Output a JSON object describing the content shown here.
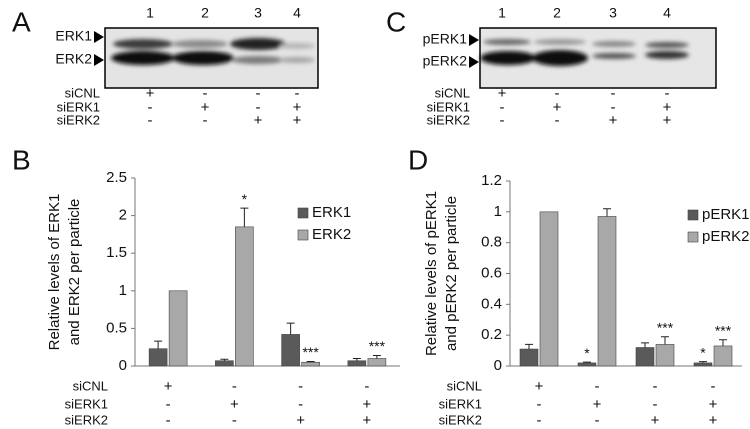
{
  "blots": [
    {
      "panel_label": "A",
      "lanes": [
        "1",
        "2",
        "3",
        "4"
      ],
      "bands": [
        "ERK1",
        "ERK2"
      ],
      "treatments": [
        {
          "name": "siCNL",
          "marks": [
            "+",
            "-",
            "-",
            "-"
          ]
        },
        {
          "name": "siERK1",
          "marks": [
            "-",
            "+",
            "-",
            "+"
          ]
        },
        {
          "name": "siERK2",
          "marks": [
            "-",
            "-",
            "+",
            "+"
          ]
        }
      ]
    },
    {
      "panel_label": "C",
      "lanes": [
        "1",
        "2",
        "3",
        "4"
      ],
      "bands": [
        "pERK1",
        "pERK2"
      ],
      "treatments": [
        {
          "name": "siCNL",
          "marks": [
            "+",
            "-",
            "-",
            "-"
          ]
        },
        {
          "name": "siERK1",
          "marks": [
            "-",
            "+",
            "-",
            "+"
          ]
        },
        {
          "name": "siERK2",
          "marks": [
            "-",
            "-",
            "+",
            "+"
          ]
        }
      ]
    }
  ],
  "chart_data": [
    {
      "type": "bar",
      "panel_label": "B",
      "ylabel": [
        "Relative levels of ERK1",
        "and ERK2 per particle"
      ],
      "categories": [
        null,
        null,
        null,
        null
      ],
      "series": [
        {
          "name": "ERK1",
          "color": "#5a5a5a",
          "values": [
            0.23,
            0.07,
            0.42,
            0.07
          ],
          "errors": [
            0.1,
            0.02,
            0.15,
            0.03
          ]
        },
        {
          "name": "ERK2",
          "color": "#a8a8a8",
          "values": [
            1.0,
            1.85,
            0.05,
            0.1
          ],
          "errors": [
            null,
            0.25,
            0.01,
            0.04
          ]
        }
      ],
      "annotations": [
        {
          "text": "*",
          "series": 1,
          "index": 1
        },
        {
          "text": "***",
          "series": 1,
          "index": 2
        },
        {
          "text": "***",
          "series": 1,
          "index": 3
        }
      ],
      "treatments": [
        {
          "name": "siCNL",
          "marks": [
            "+",
            "-",
            "-",
            "-"
          ]
        },
        {
          "name": "siERK1",
          "marks": [
            "-",
            "+",
            "-",
            "+"
          ]
        },
        {
          "name": "siERK2",
          "marks": [
            "-",
            "-",
            "+",
            "+"
          ]
        }
      ],
      "ylim": [
        0,
        2.5
      ],
      "yticks": [
        0,
        0.5,
        1,
        1.5,
        2,
        2.5
      ],
      "grid": false,
      "legend": "right"
    },
    {
      "type": "bar",
      "panel_label": "D",
      "ylabel": [
        "Relative levels of pERK1",
        "and pERK2 per particle"
      ],
      "categories": [
        null,
        null,
        null,
        null
      ],
      "series": [
        {
          "name": "pERK1",
          "color": "#5a5a5a",
          "values": [
            0.11,
            0.02,
            0.12,
            0.02
          ],
          "errors": [
            0.03,
            0.005,
            0.03,
            0.008
          ]
        },
        {
          "name": "pERK2",
          "color": "#a8a8a8",
          "values": [
            1.0,
            0.97,
            0.14,
            0.13
          ],
          "errors": [
            null,
            0.05,
            0.05,
            0.04
          ]
        }
      ],
      "annotations": [
        {
          "text": "*",
          "series": 0,
          "index": 1
        },
        {
          "text": "***",
          "series": 1,
          "index": 2
        },
        {
          "text": "*",
          "series": 0,
          "index": 3
        },
        {
          "text": "***",
          "series": 1,
          "index": 3
        }
      ],
      "treatments": [
        {
          "name": "siCNL",
          "marks": [
            "+",
            "-",
            "-",
            "-"
          ]
        },
        {
          "name": "siERK1",
          "marks": [
            "-",
            "+",
            "-",
            "+"
          ]
        },
        {
          "name": "siERK2",
          "marks": [
            "-",
            "-",
            "+",
            "+"
          ]
        }
      ],
      "ylim": [
        0,
        1.2
      ],
      "yticks": [
        0,
        0.2,
        0.4,
        0.6,
        0.8,
        1,
        1.2
      ],
      "grid": false,
      "legend": "right"
    }
  ]
}
